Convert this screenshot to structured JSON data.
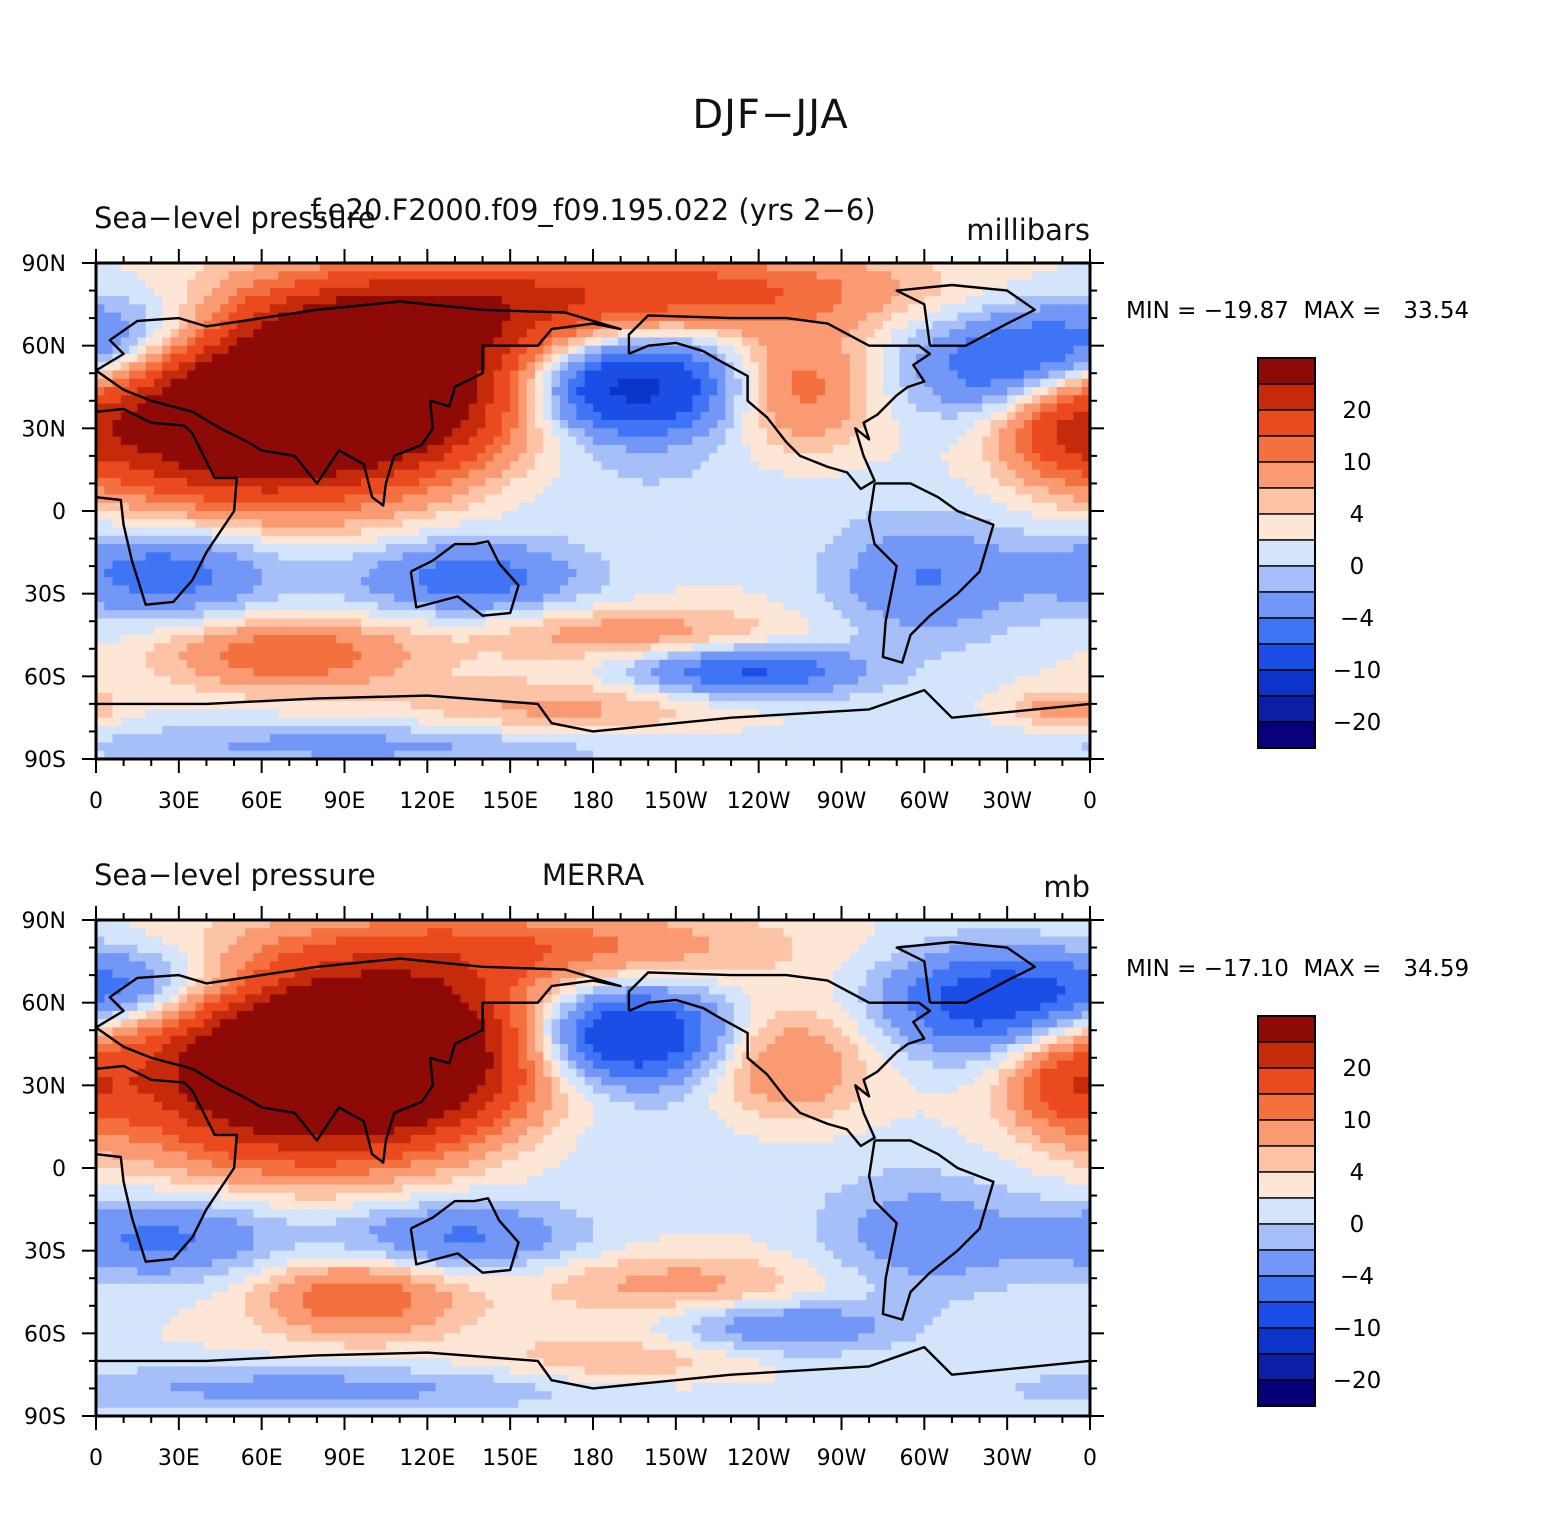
{
  "figure_title": "DJF−JJA",
  "colors": {
    "levels": [
      "#08007a",
      "#0a1fa6",
      "#0b35c8",
      "#1a4ee6",
      "#3f74f5",
      "#7397f7",
      "#a7bff8",
      "#d3e4fb",
      "#fde6d6",
      "#fcc3a6",
      "#f99a72",
      "#f4703f",
      "#ea4a1e",
      "#c52a0b",
      "#8e0a06"
    ],
    "map_background": "#d9e7fb",
    "coastline": "#000000"
  },
  "chart_data": [
    {
      "type": "heatmap",
      "title_left": "Sea−level pressure",
      "title_center": "f.e20.F2000.f09_f09.195.022 (yrs 2−6)",
      "title_right": "millibars",
      "stats": "MIN = −19.87  MAX =   33.54",
      "min": -19.87,
      "max": 33.54,
      "y_tick_labels": [
        "90N",
        "60N",
        "30N",
        "0",
        "30S",
        "60S",
        "90S"
      ],
      "x_tick_labels": [
        "0",
        "30E",
        "60E",
        "90E",
        "120E",
        "150E",
        "180",
        "150W",
        "120W",
        "90W",
        "60W",
        "30W",
        "0"
      ],
      "xlim": [
        0,
        360
      ],
      "ylim": [
        -90,
        90
      ],
      "colorbar_labels": [
        "20",
        "10",
        "4",
        "0",
        "−4",
        "−10",
        "−20"
      ],
      "anomalies": [
        {
          "lon": 95,
          "lat": 48,
          "value": 30,
          "sx": 38,
          "sy": 20
        },
        {
          "lon": 75,
          "lat": 35,
          "value": 18,
          "sx": 45,
          "sy": 22
        },
        {
          "lon": 40,
          "lat": 30,
          "value": 14,
          "sx": 35,
          "sy": 18
        },
        {
          "lon": 130,
          "lat": 70,
          "value": 10,
          "sx": 40,
          "sy": 12
        },
        {
          "lon": 205,
          "lat": 80,
          "value": 12,
          "sx": 60,
          "sy": 10
        },
        {
          "lon": 255,
          "lat": 45,
          "value": 9,
          "sx": 18,
          "sy": 16
        },
        {
          "lon": 350,
          "lat": 30,
          "value": 10,
          "sx": 16,
          "sy": 12
        },
        {
          "lon": 192,
          "lat": 45,
          "value": -18,
          "sx": 28,
          "sy": 13
        },
        {
          "lon": 15,
          "lat": 62,
          "value": -9,
          "sx": 28,
          "sy": 12
        },
        {
          "lon": 330,
          "lat": 52,
          "value": -10,
          "sx": 26,
          "sy": 14
        },
        {
          "lon": 25,
          "lat": -22,
          "value": -9,
          "sx": 30,
          "sy": 12
        },
        {
          "lon": 135,
          "lat": -24,
          "value": -9,
          "sx": 30,
          "sy": 10
        },
        {
          "lon": 300,
          "lat": -25,
          "value": -7,
          "sx": 25,
          "sy": 16
        },
        {
          "lon": 235,
          "lat": -58,
          "value": -11,
          "sx": 30,
          "sy": 7
        },
        {
          "lon": 70,
          "lat": -52,
          "value": 10,
          "sx": 30,
          "sy": 9
        },
        {
          "lon": 195,
          "lat": -45,
          "value": 6,
          "sx": 40,
          "sy": 7
        },
        {
          "lon": 170,
          "lat": -72,
          "value": 5,
          "sx": 40,
          "sy": 8
        },
        {
          "lon": 100,
          "lat": -85,
          "value": -5,
          "sx": 80,
          "sy": 6
        },
        {
          "lon": 170,
          "lat": 10,
          "value": -2,
          "sx": 70,
          "sy": 12
        },
        {
          "lon": 350,
          "lat": -72,
          "value": 6,
          "sx": 12,
          "sy": 5
        }
      ]
    },
    {
      "type": "heatmap",
      "title_left": "Sea−level pressure",
      "title_center": "MERRA",
      "title_right": "mb",
      "stats": "MIN = −17.10  MAX =   34.59",
      "min": -17.1,
      "max": 34.59,
      "y_tick_labels": [
        "90N",
        "60N",
        "30N",
        "0",
        "30S",
        "60S",
        "90S"
      ],
      "x_tick_labels": [
        "0",
        "30E",
        "60E",
        "90E",
        "120E",
        "150E",
        "180",
        "150W",
        "120W",
        "90W",
        "60W",
        "30W",
        "0"
      ],
      "xlim": [
        0,
        360
      ],
      "ylim": [
        -90,
        90
      ],
      "colorbar_labels": [
        "20",
        "10",
        "4",
        "0",
        "−4",
        "−10",
        "−20"
      ],
      "anomalies": [
        {
          "lon": 92,
          "lat": 35,
          "value": 30,
          "sx": 40,
          "sy": 18
        },
        {
          "lon": 70,
          "lat": 35,
          "value": 16,
          "sx": 48,
          "sy": 24
        },
        {
          "lon": 110,
          "lat": 55,
          "value": 14,
          "sx": 35,
          "sy": 15
        },
        {
          "lon": 150,
          "lat": 80,
          "value": 9,
          "sx": 60,
          "sy": 10
        },
        {
          "lon": 250,
          "lat": 38,
          "value": 8,
          "sx": 20,
          "sy": 15
        },
        {
          "lon": 352,
          "lat": 30,
          "value": 10,
          "sx": 14,
          "sy": 12
        },
        {
          "lon": 190,
          "lat": 48,
          "value": -17,
          "sx": 28,
          "sy": 13
        },
        {
          "lon": 15,
          "lat": 65,
          "value": -10,
          "sx": 28,
          "sy": 11
        },
        {
          "lon": 320,
          "lat": 60,
          "value": -12,
          "sx": 26,
          "sy": 14
        },
        {
          "lon": 25,
          "lat": -25,
          "value": -8,
          "sx": 30,
          "sy": 11
        },
        {
          "lon": 130,
          "lat": -25,
          "value": -8,
          "sx": 32,
          "sy": 10
        },
        {
          "lon": 300,
          "lat": -25,
          "value": -6,
          "sx": 28,
          "sy": 16
        },
        {
          "lon": 250,
          "lat": -58,
          "value": -7,
          "sx": 28,
          "sy": 7
        },
        {
          "lon": 95,
          "lat": -47,
          "value": 10,
          "sx": 25,
          "sy": 10
        },
        {
          "lon": 210,
          "lat": -42,
          "value": 5,
          "sx": 40,
          "sy": 8
        },
        {
          "lon": 190,
          "lat": -70,
          "value": 4,
          "sx": 35,
          "sy": 7
        },
        {
          "lon": 80,
          "lat": -80,
          "value": -5,
          "sx": 80,
          "sy": 6
        },
        {
          "lon": 170,
          "lat": 10,
          "value": -2,
          "sx": 70,
          "sy": 12
        }
      ]
    }
  ]
}
